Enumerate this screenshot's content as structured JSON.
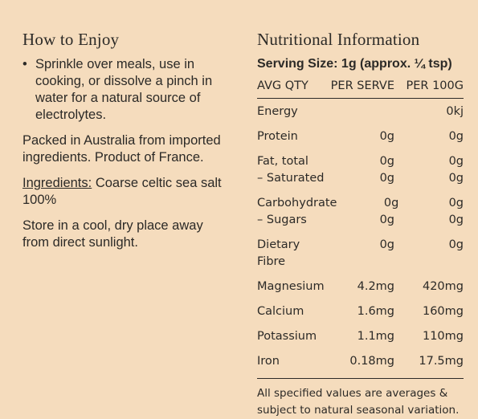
{
  "enjoy": {
    "title": "How to Enjoy",
    "bullet": "Sprinkle over meals, use in cooking, or dissolve a pinch in water for a natural source of electrolytes.",
    "packed": "Packed in Australia from imported ingredients. Product of France.",
    "ingredients_label": "Ingredients:",
    "ingredients_text": " Coarse celtic sea salt 100%",
    "storage": "Store in a cool, dry place away from direct sunlight."
  },
  "nutrition": {
    "title": "Nutritional Information",
    "serving": "Serving Size: 1g (approx. ¼ tsp)",
    "headers": [
      "AVG QTY",
      "PER SERVE",
      "PER 100G"
    ],
    "groups": [
      [
        [
          "Energy",
          "",
          "0kj"
        ]
      ],
      [
        [
          "Protein",
          "0g",
          "0g"
        ]
      ],
      [
        [
          "Fat, total",
          "0g",
          "0g"
        ],
        [
          "– Saturated",
          "0g",
          "0g"
        ]
      ],
      [
        [
          "Carbohydrate",
          "0g",
          "0g"
        ],
        [
          "– Sugars",
          "0g",
          "0g"
        ]
      ],
      [
        [
          "Dietary Fibre",
          "0g",
          "0g"
        ]
      ],
      [
        [
          "Magnesium",
          "4.2mg",
          "420mg"
        ]
      ],
      [
        [
          "Calcium",
          "1.6mg",
          "160mg"
        ]
      ],
      [
        [
          "Potassium",
          "1.1mg",
          "110mg"
        ]
      ],
      [
        [
          "Iron",
          "0.18mg",
          "17.5mg"
        ]
      ]
    ],
    "footnote": "All specified values are averages & subject to natural seasonal variation."
  }
}
